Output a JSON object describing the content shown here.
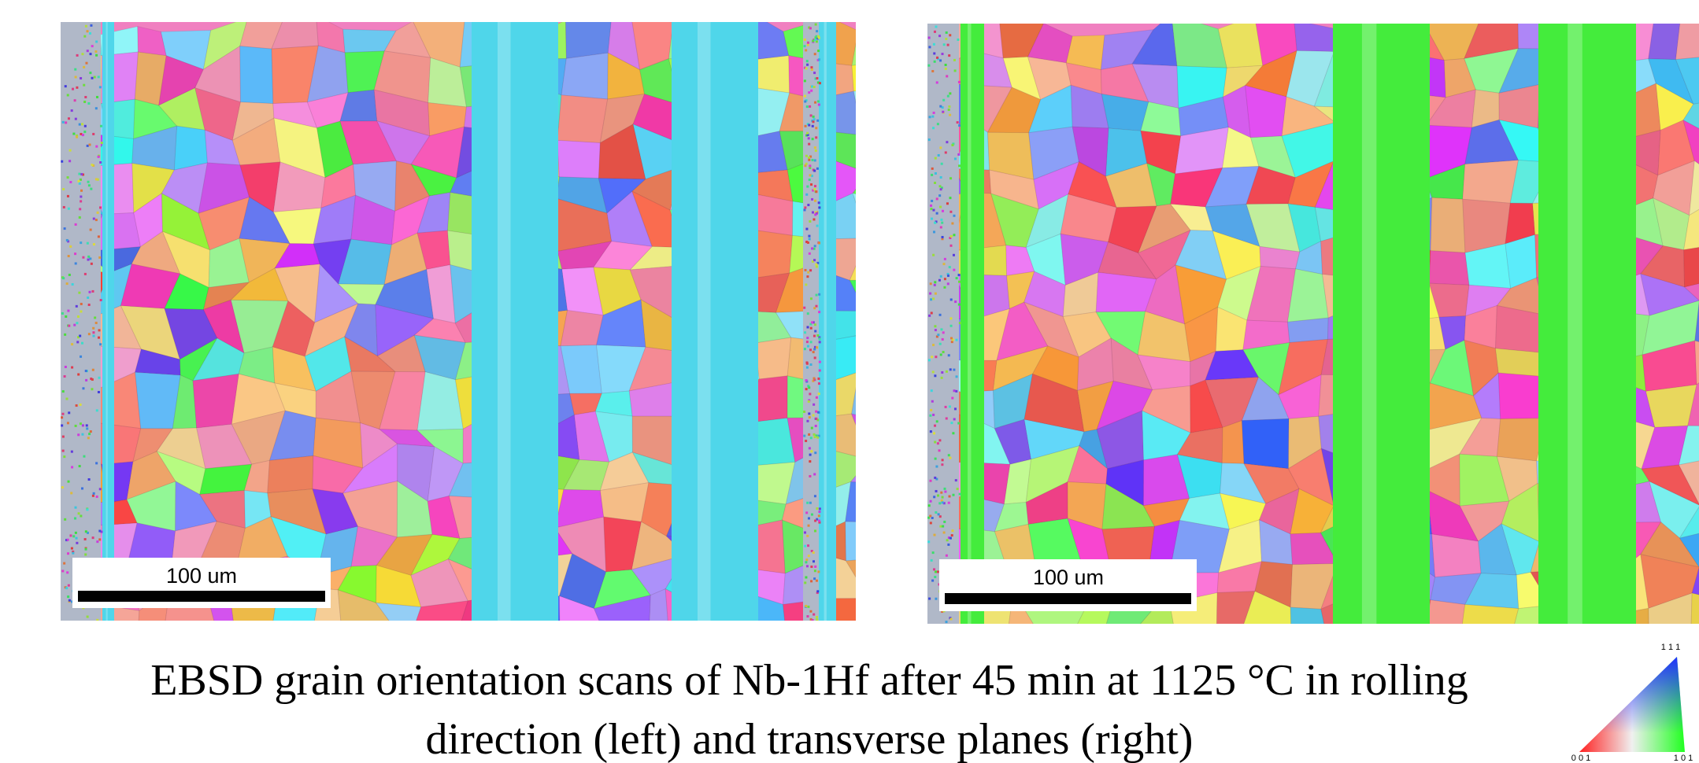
{
  "images": [
    {
      "scale_bar": "100 um"
    },
    {
      "scale_bar": "100 um"
    }
  ],
  "caption": {
    "lines": [
      "EBSD grain orientation scans of Nb-1Hf after 45 min at 1125 °C in rolling",
      "direction (left) and transverse planes (right)"
    ]
  },
  "legend": {
    "corners": [
      "1 1 1",
      "0 0 1",
      "1 0 1"
    ]
  }
}
